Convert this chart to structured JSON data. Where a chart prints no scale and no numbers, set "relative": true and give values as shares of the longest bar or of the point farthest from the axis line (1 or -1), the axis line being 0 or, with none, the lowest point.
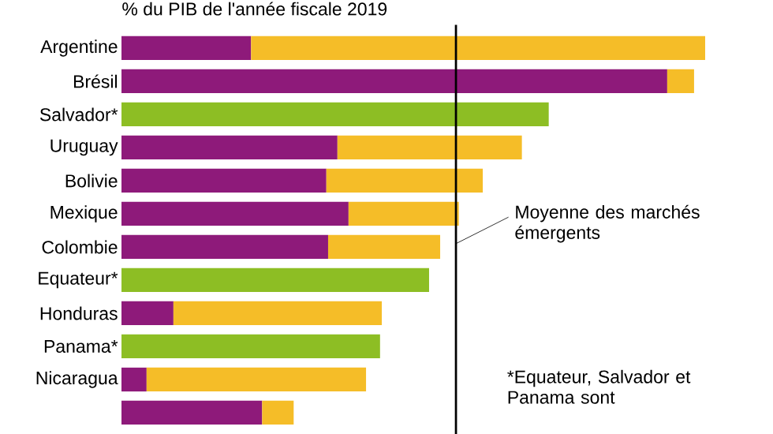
{
  "chart_data": {
    "type": "bar",
    "orientation": "horizontal",
    "stacked": true,
    "relative": true,
    "title": "% du PIB de l'année fiscale 2019",
    "categories": [
      "Argentine",
      "Brésil",
      "Salvador*",
      "Uruguay",
      "Bolivie",
      "Mexique",
      "Colombie",
      "Equateur*",
      "Honduras",
      "Panama*",
      "Nicaragua",
      null
    ],
    "series": [
      {
        "color": "#8e1a7a",
        "values": [
          0.222,
          0.935,
          null,
          0.37,
          0.351,
          0.389,
          0.354,
          null,
          0.089,
          null,
          0.043,
          0.241
        ]
      },
      {
        "color": "#f5bd28",
        "values": [
          0.778,
          0.046,
          null,
          0.316,
          0.268,
          0.189,
          0.192,
          null,
          0.357,
          null,
          0.376,
          0.054
        ]
      },
      {
        "color": "#8dbe24",
        "values": [
          null,
          null,
          0.732,
          null,
          null,
          null,
          null,
          0.527,
          null,
          0.443,
          null,
          null
        ]
      }
    ],
    "ref_lines": [
      {
        "axis": "x",
        "value": 0.573,
        "label": "Moyenne des marchés émergents",
        "color": "#000000"
      }
    ],
    "annotations": [
      "*Equateur, Salvador et Panama sont"
    ]
  }
}
